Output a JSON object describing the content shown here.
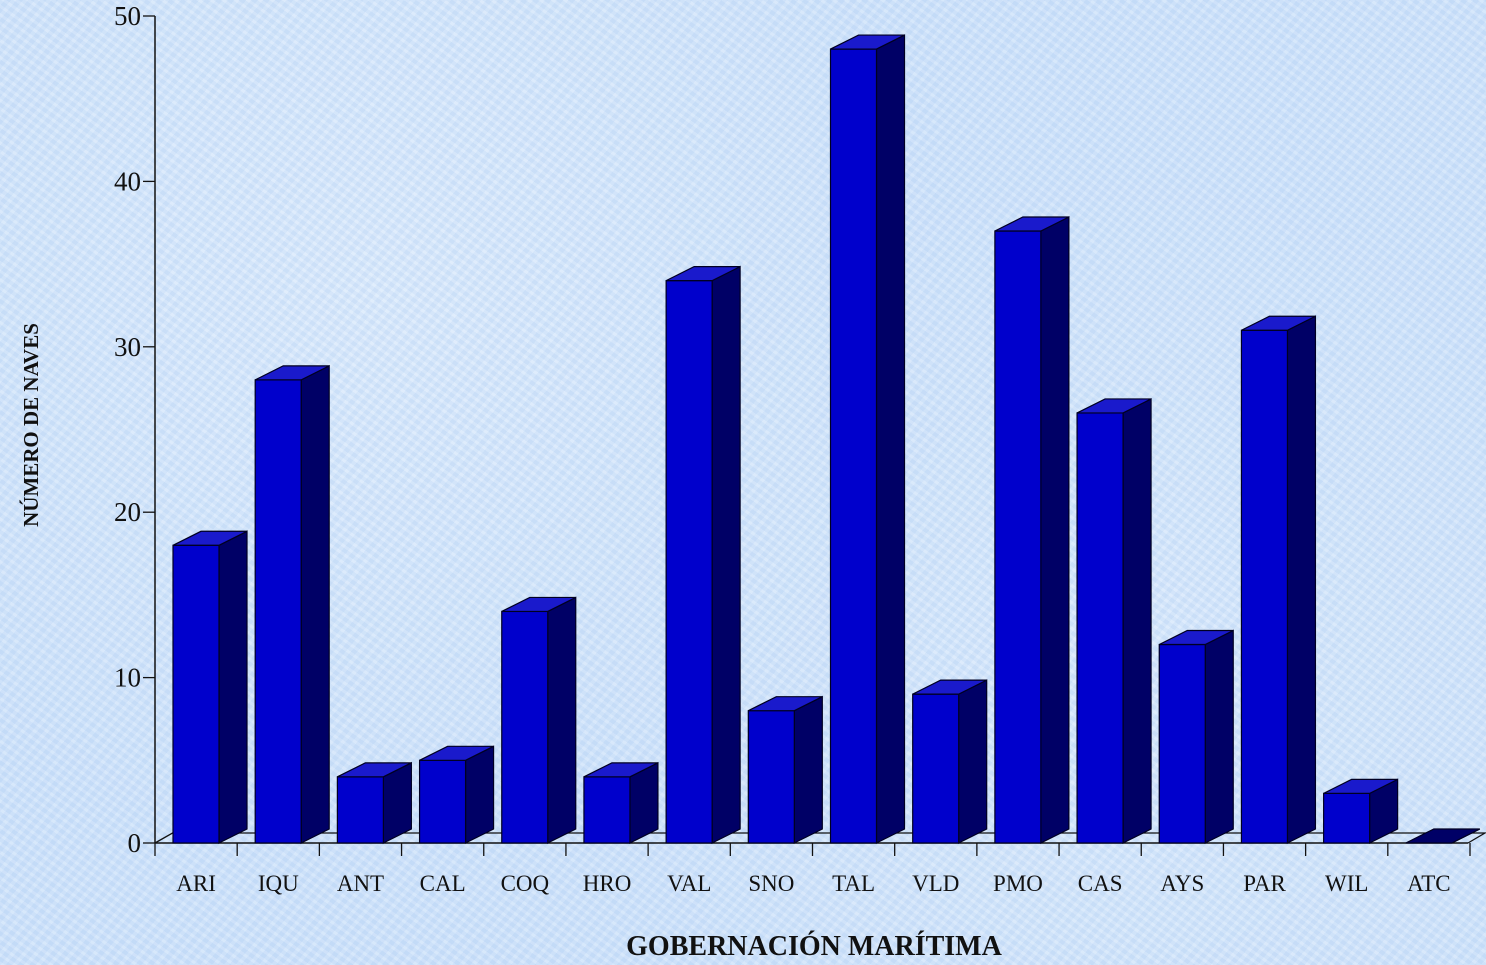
{
  "chart_data": {
    "type": "bar",
    "style": "3d-column",
    "categories": [
      "ARI",
      "IQU",
      "ANT",
      "CAL",
      "COQ",
      "HRO",
      "VAL",
      "SNO",
      "TAL",
      "VLD",
      "PMO",
      "CAS",
      "AYS",
      "PAR",
      "WIL",
      "ATC"
    ],
    "values": [
      18,
      28,
      4,
      5,
      14,
      4,
      34,
      8,
      48,
      9,
      37,
      26,
      12,
      31,
      3,
      0
    ],
    "title": "",
    "xlabel": "GOBERNACIÓN MARÍTIMA",
    "ylabel": "NÚMERO DE NAVES",
    "ylim": [
      0,
      50
    ],
    "yticks": [
      0,
      10,
      20,
      30,
      40,
      50
    ],
    "grid": false,
    "legend": "none",
    "colors": {
      "bar_front": "#0000cc",
      "bar_top": "#1a1acc",
      "bar_side": "#000066",
      "axis": "#111111"
    }
  }
}
